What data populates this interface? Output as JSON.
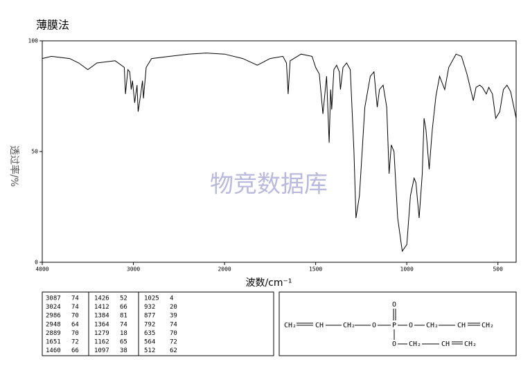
{
  "chart_data": {
    "type": "line",
    "title": "薄膜法",
    "x_label": "波数/cm⁻¹",
    "y_label": "透过率/%",
    "watermark": "物竞数据库",
    "xlim": [
      4000,
      400
    ],
    "xscale_break": 2000,
    "xscale_factor": 2,
    "xticks": [
      4000,
      3000,
      2000,
      1500,
      1000,
      500
    ],
    "ylim": [
      0,
      100
    ],
    "yticks": [
      0,
      50,
      100
    ],
    "grid": false,
    "series": [
      {
        "name": null,
        "color": "#000000",
        "x": [
          4000,
          3900,
          3700,
          3600,
          3500,
          3400,
          3200,
          3100,
          3087,
          3060,
          3040,
          3024,
          3010,
          2986,
          2960,
          2948,
          2920,
          2900,
          2889,
          2860,
          2800,
          2600,
          2400,
          2200,
          2000,
          1900,
          1820,
          1750,
          1680,
          1660,
          1651,
          1640,
          1580,
          1520,
          1500,
          1480,
          1460,
          1440,
          1426,
          1418,
          1412,
          1400,
          1385,
          1370,
          1364,
          1350,
          1330,
          1310,
          1290,
          1279,
          1260,
          1230,
          1200,
          1180,
          1162,
          1150,
          1130,
          1110,
          1097,
          1085,
          1070,
          1050,
          1025,
          1000,
          980,
          960,
          950,
          932,
          915,
          905,
          895,
          877,
          860,
          840,
          820,
          792,
          770,
          730,
          700,
          670,
          635,
          620,
          600,
          585,
          564,
          550,
          530,
          512,
          490,
          470,
          450,
          430,
          400
        ],
        "values": [
          92,
          93,
          92,
          90,
          87,
          90,
          91,
          88,
          76,
          87,
          86,
          78,
          82,
          72,
          80,
          68,
          76,
          82,
          74,
          88,
          92,
          93,
          94,
          94.5,
          94,
          92,
          89,
          92,
          93,
          90,
          76,
          91,
          94,
          93,
          88,
          85,
          67,
          84,
          54,
          78,
          69,
          87,
          89,
          86,
          78,
          88,
          90,
          87,
          50,
          20,
          30,
          70,
          84,
          86,
          70,
          78,
          80,
          70,
          40,
          53,
          50,
          20,
          5,
          8,
          30,
          38,
          36,
          20,
          40,
          65,
          60,
          42,
          60,
          75,
          84,
          78,
          88,
          94,
          93,
          85,
          73,
          79,
          80,
          79,
          76,
          79,
          76,
          65,
          68,
          78,
          80,
          77,
          65
        ]
      }
    ],
    "peak_table": [
      [
        3087,
        74,
        1426,
        52,
        1025,
        4
      ],
      [
        3024,
        74,
        1412,
        66,
        932,
        20
      ],
      [
        2986,
        70,
        1384,
        81,
        877,
        39
      ],
      [
        2948,
        64,
        1364,
        74,
        792,
        74
      ],
      [
        2889,
        70,
        1279,
        18,
        635,
        70
      ],
      [
        1651,
        72,
        1162,
        65,
        564,
        72
      ],
      [
        1460,
        66,
        1097,
        38,
        512,
        62
      ]
    ],
    "structure_atoms": [
      "CH₂",
      "CH",
      "CH₂",
      "O",
      "P",
      "O",
      "CH₂",
      "CH",
      "CH₂",
      "O",
      "O",
      "CH₂",
      "CH",
      "CH₂"
    ]
  }
}
